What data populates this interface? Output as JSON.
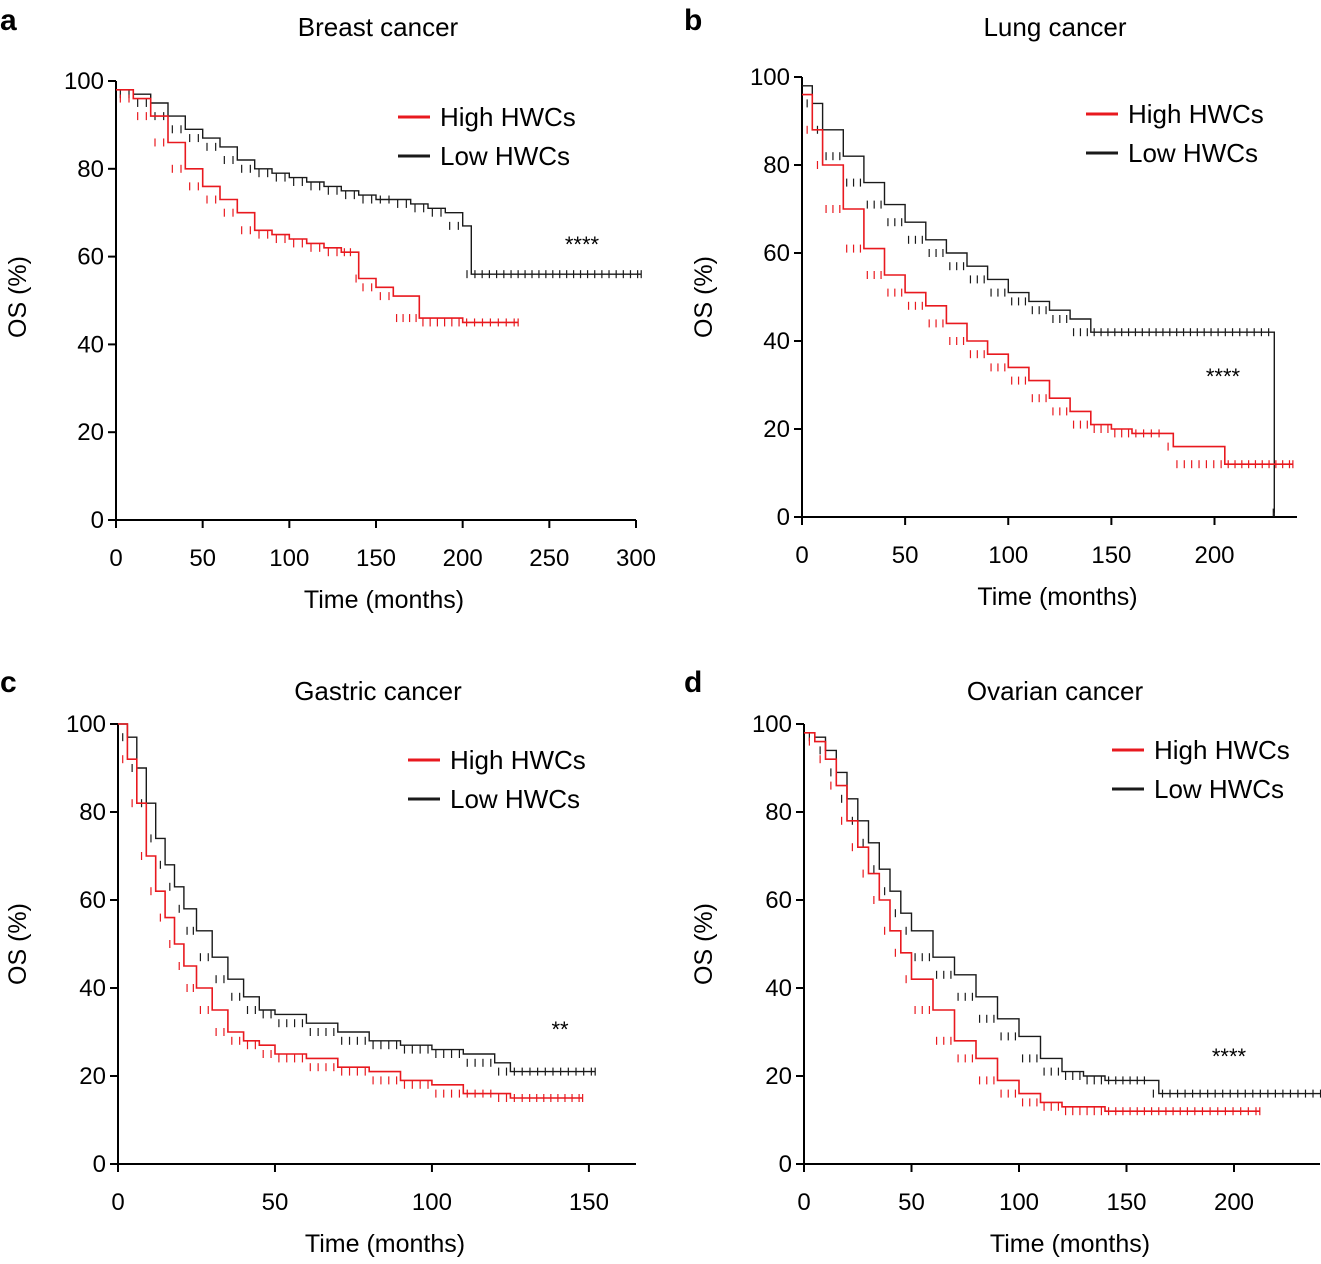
{
  "figure": {
    "legend_high": "High HWCs",
    "legend_low": "Low HWCs",
    "colors": {
      "high": "#e8191f",
      "low": "#1a1a1a",
      "axis": "#000000"
    }
  },
  "chart_data": [
    {
      "panel": "a",
      "type": "line",
      "title": "Breast cancer",
      "xlabel": "Time (months)",
      "ylabel": "OS (%)",
      "xlim": [
        0,
        300
      ],
      "ylim": [
        0,
        100
      ],
      "xticks": [
        0,
        50,
        100,
        150,
        200,
        250,
        300
      ],
      "yticks": [
        0,
        20,
        40,
        60,
        80,
        100
      ],
      "significance": "****",
      "series": [
        {
          "name": "High HWCs",
          "x": [
            0,
            10,
            20,
            30,
            40,
            50,
            60,
            70,
            80,
            90,
            100,
            110,
            120,
            130,
            137,
            140,
            150,
            160,
            175,
            200,
            232
          ],
          "y": [
            98,
            96,
            92,
            86,
            80,
            76,
            73,
            70,
            66,
            65,
            64,
            63,
            62,
            61,
            61,
            55,
            53,
            51,
            46,
            45,
            45
          ]
        },
        {
          "name": "Low HWCs",
          "x": [
            0,
            10,
            20,
            30,
            40,
            50,
            60,
            70,
            80,
            90,
            100,
            110,
            120,
            130,
            140,
            150,
            160,
            170,
            180,
            190,
            200,
            205,
            230,
            250,
            270,
            303
          ],
          "y": [
            98,
            97,
            95,
            92,
            89,
            87,
            85,
            82,
            80,
            79,
            78,
            77,
            76,
            75,
            74,
            73,
            73,
            72,
            71,
            70,
            67,
            56,
            56,
            56,
            56,
            56
          ]
        }
      ]
    },
    {
      "panel": "b",
      "type": "line",
      "title": "Lung cancer",
      "xlabel": "Time (months)",
      "ylabel": "OS (%)",
      "xlim": [
        0,
        240
      ],
      "ylim": [
        0,
        100
      ],
      "xticks": [
        0,
        50,
        100,
        150,
        200
      ],
      "yticks": [
        0,
        20,
        40,
        60,
        80,
        100
      ],
      "significance": "****",
      "series": [
        {
          "name": "High HWCs",
          "x": [
            0,
            5,
            10,
            20,
            30,
            40,
            50,
            60,
            70,
            80,
            90,
            100,
            110,
            120,
            130,
            140,
            150,
            160,
            175,
            180,
            205,
            238
          ],
          "y": [
            96,
            88,
            80,
            70,
            61,
            55,
            51,
            48,
            44,
            40,
            37,
            34,
            31,
            27,
            24,
            21,
            20,
            19,
            19,
            16,
            12,
            12
          ]
        },
        {
          "name": "Low HWCs",
          "x": [
            0,
            5,
            10,
            20,
            30,
            40,
            50,
            60,
            70,
            80,
            90,
            100,
            110,
            120,
            130,
            140,
            150,
            180,
            200,
            228,
            229
          ],
          "y": [
            98,
            94,
            88,
            82,
            76,
            71,
            67,
            63,
            60,
            57,
            54,
            51,
            49,
            47,
            45,
            42,
            42,
            42,
            42,
            42,
            1
          ]
        }
      ]
    },
    {
      "panel": "c",
      "type": "line",
      "title": "Gastric cancer",
      "xlabel": "Time (months)",
      "ylabel": "OS (%)",
      "xlim": [
        0,
        165
      ],
      "ylim": [
        0,
        100
      ],
      "xticks": [
        0,
        50,
        100,
        150
      ],
      "yticks": [
        0,
        20,
        40,
        60,
        80,
        100
      ],
      "significance": "**",
      "series": [
        {
          "name": "High HWCs",
          "x": [
            0,
            3,
            6,
            9,
            12,
            15,
            18,
            21,
            25,
            30,
            35,
            40,
            45,
            50,
            60,
            70,
            80,
            90,
            100,
            110,
            120,
            125,
            130,
            148
          ],
          "y": [
            100,
            92,
            82,
            70,
            62,
            56,
            50,
            45,
            40,
            35,
            30,
            28,
            27,
            25,
            24,
            22,
            21,
            19,
            18,
            16,
            16,
            15,
            15,
            15
          ]
        },
        {
          "name": "Low HWCs",
          "x": [
            0,
            3,
            6,
            9,
            12,
            15,
            18,
            21,
            25,
            30,
            35,
            40,
            45,
            50,
            60,
            70,
            80,
            90,
            100,
            110,
            120,
            125,
            130,
            152
          ],
          "y": [
            100,
            97,
            90,
            82,
            74,
            68,
            63,
            58,
            53,
            47,
            42,
            38,
            35,
            34,
            32,
            30,
            28,
            27,
            26,
            25,
            23,
            21,
            21,
            21
          ]
        }
      ]
    },
    {
      "panel": "d",
      "type": "line",
      "title": "Ovarian cancer",
      "xlabel": "Time (months)",
      "ylabel": "OS (%)",
      "xlim": [
        0,
        240
      ],
      "ylim": [
        0,
        100
      ],
      "xticks": [
        0,
        50,
        100,
        150,
        200
      ],
      "yticks": [
        0,
        20,
        40,
        60,
        80,
        100
      ],
      "significance": "****",
      "series": [
        {
          "name": "High HWCs",
          "x": [
            0,
            5,
            10,
            15,
            20,
            25,
            30,
            35,
            40,
            45,
            50,
            60,
            70,
            80,
            90,
            100,
            110,
            120,
            140,
            160,
            180,
            212
          ],
          "y": [
            98,
            96,
            92,
            86,
            78,
            72,
            66,
            60,
            53,
            48,
            42,
            35,
            28,
            24,
            19,
            16,
            14,
            13,
            12,
            12,
            12,
            12
          ]
        },
        {
          "name": "Low HWCs",
          "x": [
            0,
            5,
            10,
            15,
            20,
            25,
            30,
            35,
            40,
            45,
            50,
            60,
            70,
            80,
            90,
            100,
            110,
            120,
            130,
            140,
            160,
            165,
            200,
            242
          ],
          "y": [
            98,
            97,
            94,
            89,
            83,
            78,
            73,
            67,
            62,
            57,
            53,
            47,
            43,
            38,
            33,
            29,
            24,
            21,
            20,
            19,
            19,
            16,
            16,
            16
          ]
        }
      ]
    }
  ]
}
